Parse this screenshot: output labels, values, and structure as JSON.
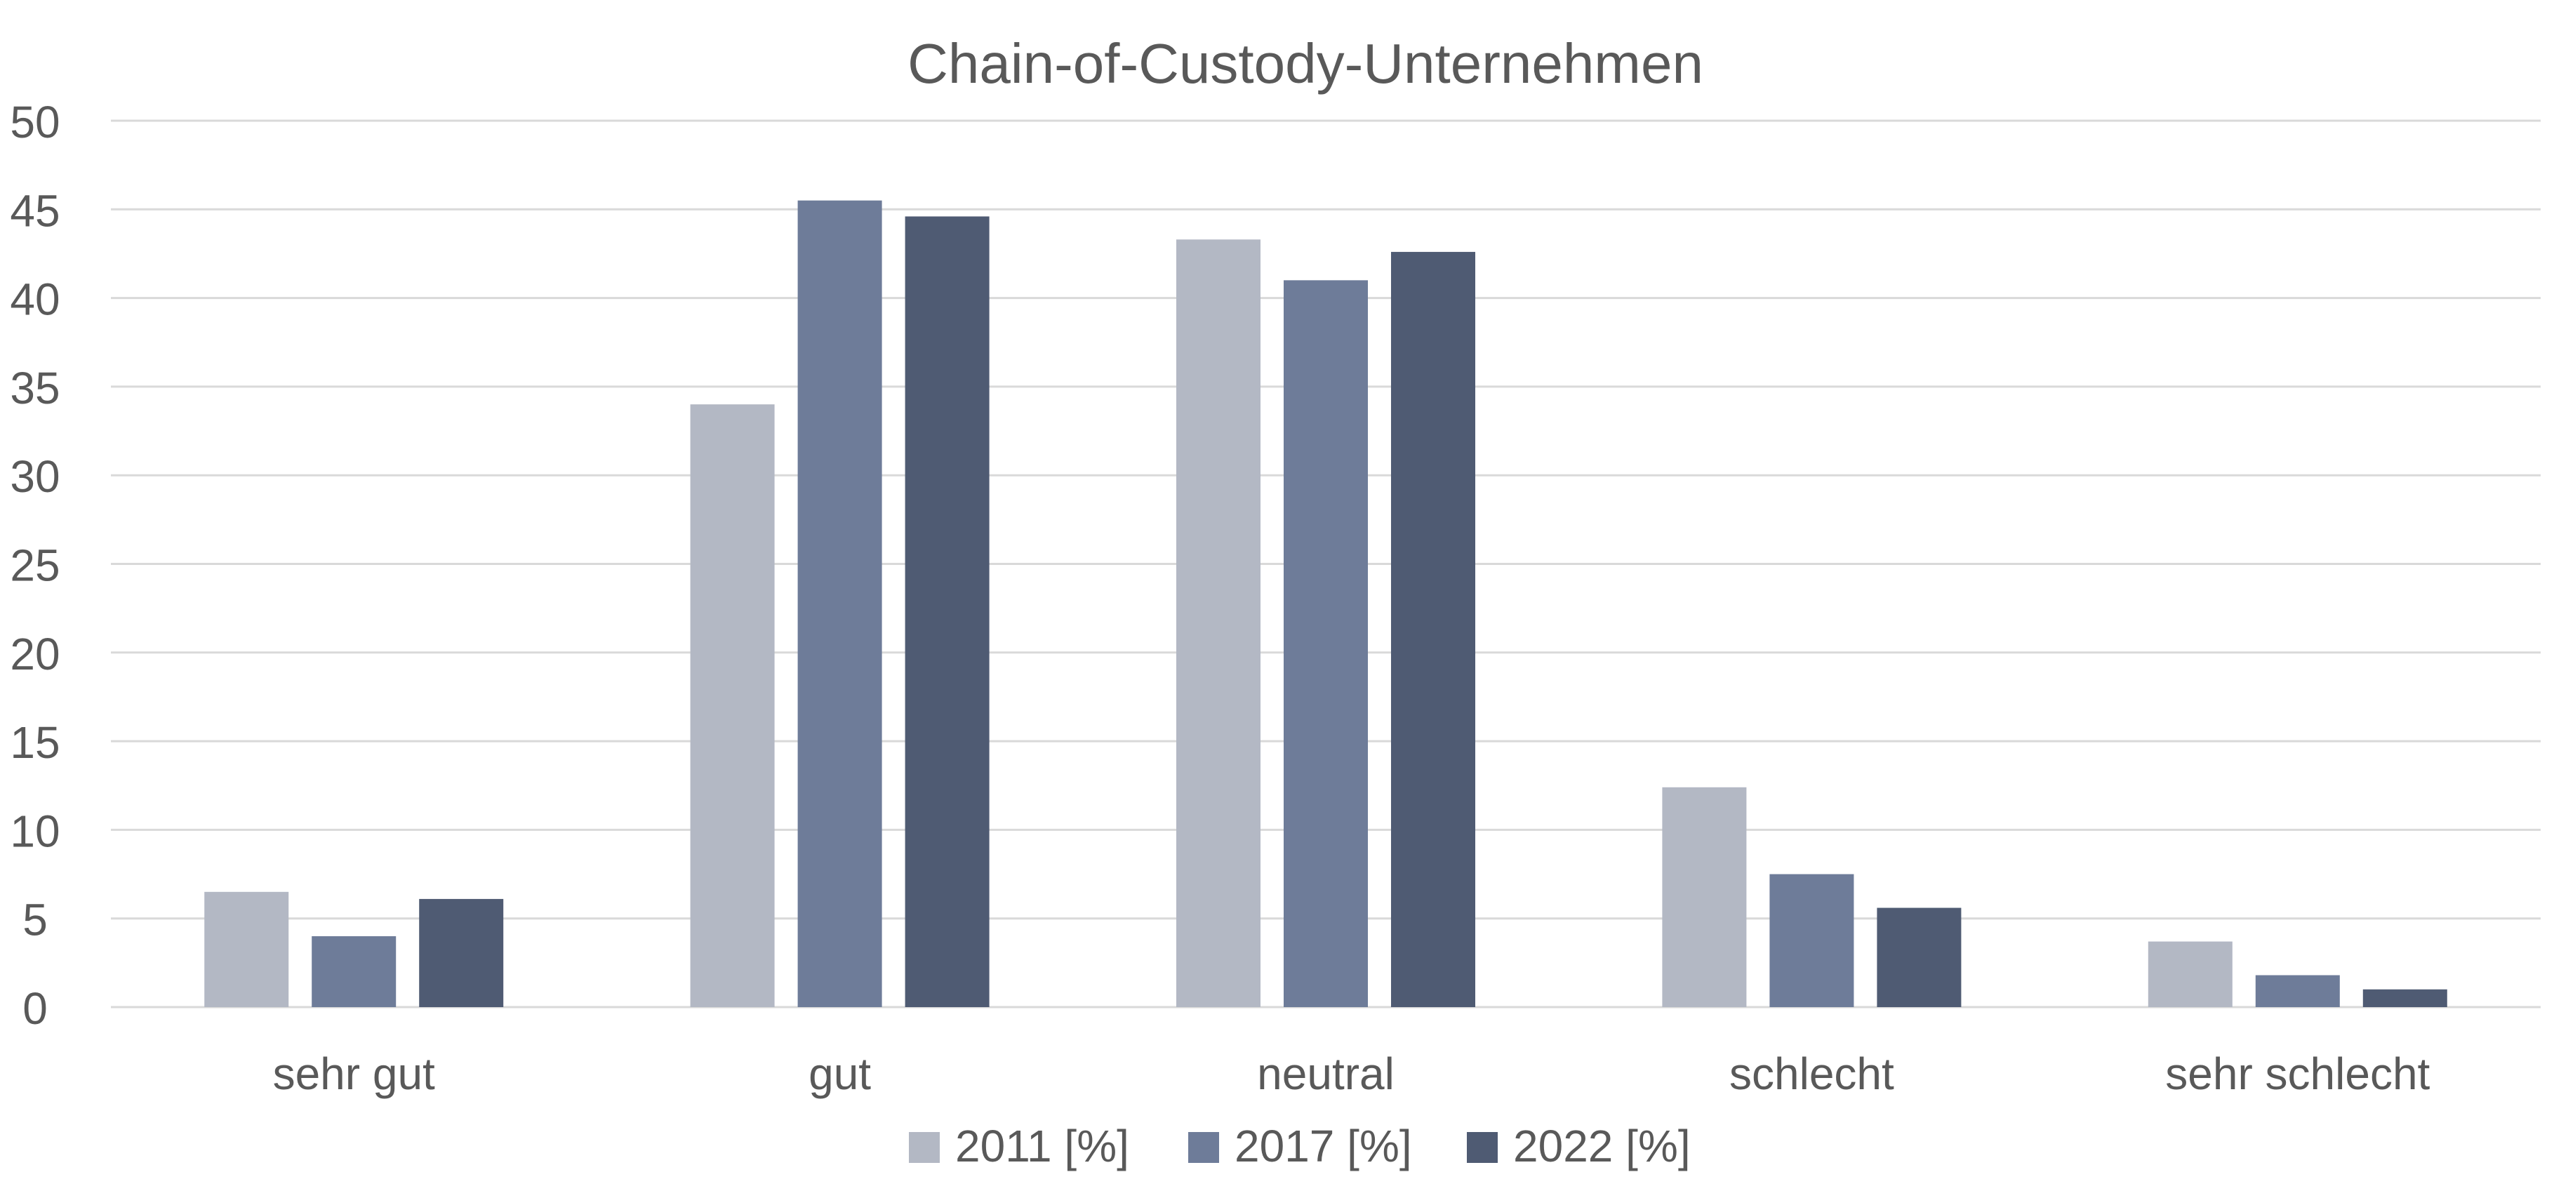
{
  "chart_data": {
    "type": "bar",
    "title": "Chain-of-Custody-Unternehmen",
    "xlabel": "",
    "ylabel": "",
    "categories": [
      "sehr gut",
      "gut",
      "neutral",
      "schlecht",
      "sehr schlecht"
    ],
    "ylim": [
      0,
      50
    ],
    "yticks": [
      "0",
      "5",
      "10",
      "15",
      "20",
      "25",
      "30",
      "35",
      "40",
      "45",
      "50"
    ],
    "grid": true,
    "legend_position": "bottom",
    "series": [
      {
        "name": "2011 [%]",
        "color": "#b3b8c4",
        "values": [
          6.5,
          34.0,
          43.3,
          12.4,
          3.7
        ]
      },
      {
        "name": "2017 [%]",
        "color": "#6e7c99",
        "values": [
          4.0,
          45.5,
          41.0,
          7.5,
          1.8
        ]
      },
      {
        "name": "2022 [%]",
        "color": "#4f5b73",
        "values": [
          6.1,
          44.6,
          42.6,
          5.6,
          1.0
        ]
      }
    ]
  },
  "colors": {
    "gridline": "#d9d9d9",
    "text": "#595959"
  }
}
